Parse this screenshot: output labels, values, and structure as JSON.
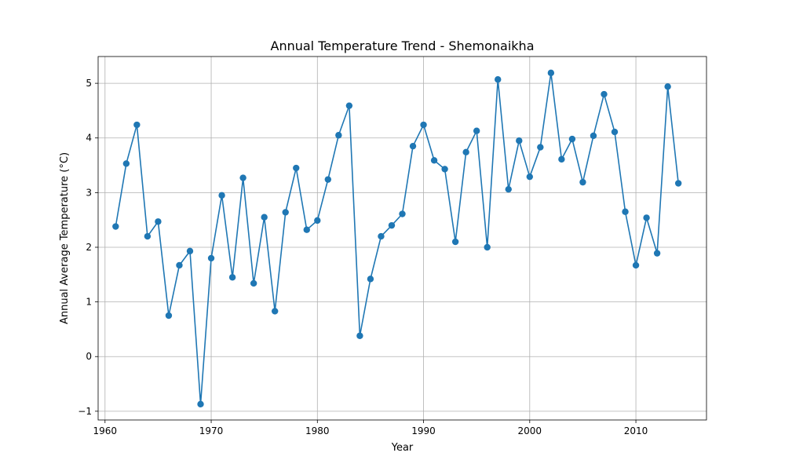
{
  "chart_data": {
    "type": "line",
    "title": "Annual Temperature Trend - Shemonaikha",
    "xlabel": "Year",
    "ylabel": "Annual Average Temperature (°C)",
    "xlim": [
      1959.35,
      2016.65
    ],
    "ylim": [
      -1.16,
      5.49
    ],
    "xticks": [
      1960,
      1970,
      1980,
      1990,
      2000,
      2010
    ],
    "yticks": [
      -1,
      0,
      1,
      2,
      3,
      4,
      5
    ],
    "ytick_labels": [
      "−1",
      "0",
      "1",
      "2",
      "3",
      "4",
      "5"
    ],
    "grid": true,
    "color": "#1f77b4",
    "series": [
      {
        "x": [
          1961,
          1962,
          1963,
          1964,
          1965,
          1966,
          1967,
          1968,
          1969,
          1970,
          1971,
          1972,
          1973,
          1974,
          1975,
          1976,
          1977,
          1978,
          1979,
          1980,
          1981,
          1982,
          1983,
          1984,
          1985,
          1986,
          1987,
          1988,
          1989,
          1990,
          1991,
          1992,
          1993,
          1994,
          1995,
          1996,
          1997,
          1998,
          1999,
          2000,
          2001,
          2002,
          2003,
          2004,
          2005,
          2006,
          2007,
          2008,
          2009,
          2010,
          2011,
          2012,
          2013,
          2014
        ],
        "y": [
          2.38,
          3.53,
          4.24,
          2.2,
          2.47,
          0.75,
          1.67,
          1.93,
          -0.87,
          1.8,
          2.95,
          1.45,
          3.27,
          1.34,
          2.55,
          0.83,
          2.64,
          3.45,
          2.32,
          2.49,
          3.24,
          4.05,
          4.59,
          0.38,
          1.42,
          2.2,
          2.4,
          2.61,
          3.85,
          4.24,
          3.59,
          3.43,
          2.1,
          3.74,
          4.13,
          2.0,
          5.07,
          3.06,
          3.95,
          3.29,
          3.83,
          5.19,
          3.61,
          3.98,
          3.19,
          4.04,
          4.8,
          4.11,
          2.65,
          1.67,
          2.54,
          1.89,
          4.94,
          3.17
        ]
      }
    ]
  }
}
